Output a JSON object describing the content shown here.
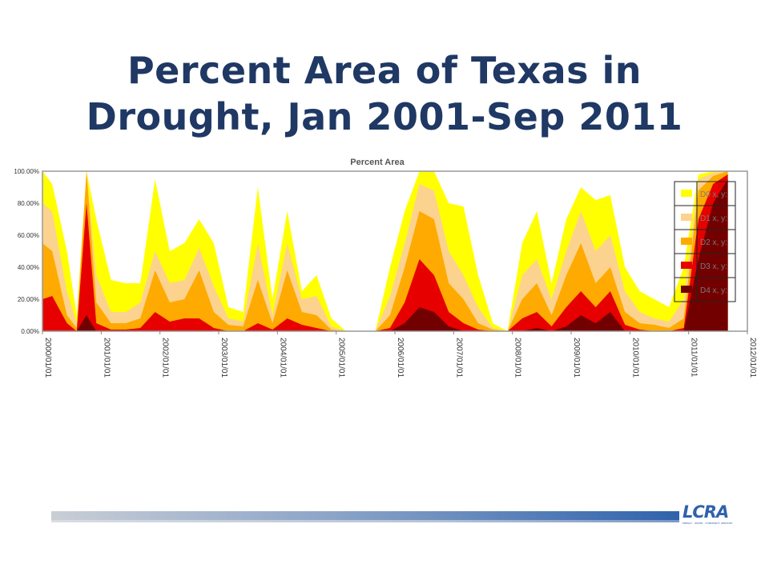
{
  "slide": {
    "title": "Percent Area of Texas in Drought, Jan 2001-Sep 2011"
  },
  "logo": {
    "text": "LCRA",
    "tagline": "ENERGY · WATER · COMMUNITY SERVICES"
  },
  "chart_data": {
    "type": "area",
    "title": "Percent Area",
    "xlabel": "",
    "ylabel": "",
    "xlim": [
      "2000/01/01",
      "2012/01/01"
    ],
    "ylim": [
      0,
      100
    ],
    "yticks": [
      "0.00%",
      "20.00%",
      "40.00%",
      "60.00%",
      "80.00%",
      "100.00%"
    ],
    "xticks": [
      "2000/01/01",
      "2001/01/01",
      "2002/01/01",
      "2003/01/01",
      "2004/01/01",
      "2005/01/01",
      "2006/01/01",
      "2007/01/01",
      "2008/01/01",
      "2009/01/01",
      "2010/01/01",
      "2011/01/01",
      "2012/01/01"
    ],
    "grid": false,
    "legend_position": "top-right",
    "colors": [
      "#ffff00",
      "#fcd38e",
      "#ffaa00",
      "#e60000",
      "#730000"
    ],
    "x": [
      "2000/01/01",
      "2000/03/01",
      "2000/06/01",
      "2000/08/01",
      "2000/10/01",
      "2000/12/01",
      "2001/03/01",
      "2001/06/01",
      "2001/09/01",
      "2001/12/01",
      "2002/03/01",
      "2002/06/01",
      "2002/09/01",
      "2002/12/01",
      "2003/03/01",
      "2003/06/01",
      "2003/09/01",
      "2003/12/01",
      "2004/03/01",
      "2004/06/01",
      "2004/09/01",
      "2004/12/01",
      "2005/03/01",
      "2005/06/01",
      "2005/09/01",
      "2005/12/01",
      "2006/03/01",
      "2006/06/01",
      "2006/09/01",
      "2006/12/01",
      "2007/03/01",
      "2007/06/01",
      "2007/09/01",
      "2007/12/01",
      "2008/03/01",
      "2008/06/01",
      "2008/09/01",
      "2008/12/01",
      "2009/03/01",
      "2009/06/01",
      "2009/09/01",
      "2009/12/01",
      "2010/03/01",
      "2010/06/01",
      "2010/09/01",
      "2010/12/01",
      "2011/03/01",
      "2011/06/01",
      "2011/09/01"
    ],
    "series": [
      {
        "name": "D0 x, y:",
        "values": [
          100,
          92,
          50,
          10,
          100,
          70,
          32,
          30,
          30,
          95,
          50,
          55,
          70,
          55,
          15,
          12,
          90,
          20,
          75,
          25,
          35,
          8,
          0,
          0,
          0,
          40,
          75,
          100,
          100,
          80,
          78,
          35,
          5,
          0,
          55,
          75,
          30,
          70,
          90,
          82,
          85,
          40,
          25,
          20,
          15,
          40,
          98,
          100,
          100
        ]
      },
      {
        "name": "D1 x, y:",
        "values": [
          80,
          75,
          25,
          5,
          100,
          35,
          12,
          12,
          18,
          50,
          30,
          32,
          52,
          28,
          8,
          6,
          55,
          10,
          55,
          20,
          22,
          3,
          0,
          0,
          0,
          22,
          55,
          92,
          88,
          50,
          35,
          15,
          2,
          0,
          35,
          45,
          20,
          50,
          75,
          50,
          60,
          25,
          12,
          8,
          6,
          20,
          95,
          99,
          100
        ]
      },
      {
        "name": "D2 x, y:",
        "values": [
          55,
          50,
          10,
          2,
          100,
          18,
          5,
          5,
          8,
          38,
          18,
          20,
          38,
          12,
          4,
          3,
          32,
          5,
          38,
          12,
          10,
          1,
          0,
          0,
          0,
          10,
          40,
          75,
          70,
          30,
          20,
          5,
          1,
          0,
          20,
          30,
          10,
          35,
          55,
          30,
          40,
          12,
          5,
          4,
          2,
          8,
          88,
          97,
          100
        ]
      },
      {
        "name": "D3 x, y:",
        "values": [
          20,
          22,
          5,
          0,
          80,
          5,
          1,
          1,
          2,
          12,
          6,
          8,
          8,
          2,
          0,
          0,
          5,
          1,
          8,
          4,
          2,
          0,
          0,
          0,
          0,
          2,
          18,
          45,
          35,
          12,
          5,
          1,
          0,
          0,
          8,
          12,
          3,
          15,
          25,
          15,
          25,
          4,
          1,
          0,
          0,
          2,
          70,
          92,
          98
        ]
      },
      {
        "name": "D4 x, y:",
        "values": [
          0,
          0,
          0,
          0,
          10,
          0,
          0,
          0,
          0,
          0,
          0,
          0,
          0,
          0,
          0,
          0,
          0,
          0,
          0,
          0,
          0,
          0,
          0,
          0,
          0,
          0,
          5,
          15,
          12,
          3,
          0,
          0,
          0,
          0,
          0,
          2,
          0,
          3,
          10,
          5,
          12,
          0,
          0,
          0,
          0,
          0,
          45,
          80,
          95
        ]
      }
    ]
  }
}
